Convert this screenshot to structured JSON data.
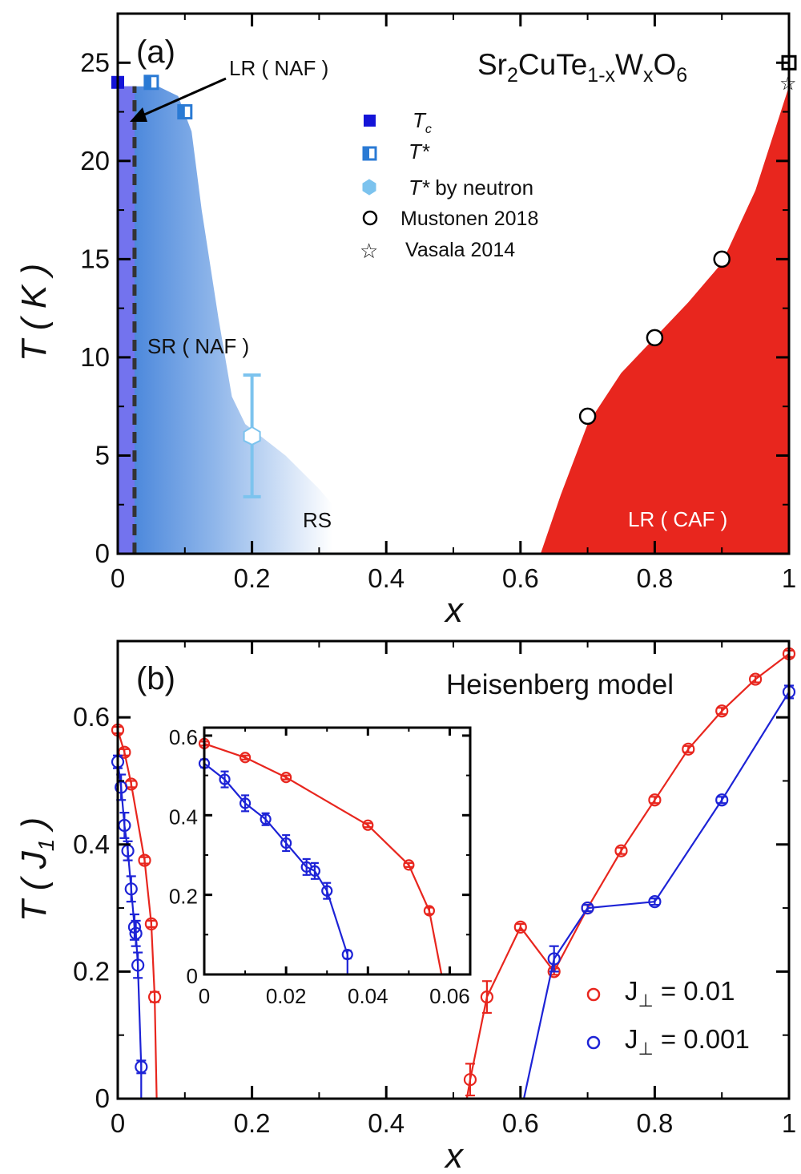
{
  "panel_a": {
    "panel_label": "(a)",
    "formula": {
      "base": "Sr",
      "s1": "2",
      "mid": "CuTe",
      "s2": "1-x",
      "w": "W",
      "s3": "x",
      "o": "O",
      "s4": "6"
    },
    "ylabel": "T ( K )",
    "xlabel": "x",
    "region_labels": {
      "lr_naf": "LR ( NAF )",
      "sr_naf": "SR ( NAF )",
      "rs": "RS",
      "lr_caf": "LR ( CAF )"
    },
    "legend": {
      "tc": "T",
      "tc_sub": "c",
      "tstar": "T*",
      "tneutron_italic": "T*",
      "tneutron_rest": " by neutron",
      "mustonen": "Mustonen 2018",
      "vasala": "Vasala 2014"
    }
  },
  "panel_b": {
    "panel_label": "(b)",
    "subtitle": "Heisenberg model",
    "ylabel": "T ( J",
    "ylabel_sub": "1",
    "ylabel_end": " )",
    "xlabel": "x",
    "legend": {
      "red_prefix": "J",
      "red_suffix": " = 0.01",
      "blue_prefix": "J",
      "blue_suffix": " = 0.001",
      "perp": "⊥"
    }
  },
  "colors": {
    "red": "#e8261e",
    "blue": "#1d23d6",
    "blue_sq": "#1414d8",
    "blue_mid": "#2a7ad4",
    "neutron": "#7cc3ee",
    "naf_strip": "#7373ee"
  },
  "chart_data": [
    {
      "id": "a",
      "type": "scatter",
      "xlim": [
        0,
        1
      ],
      "ylim": [
        0,
        27.5
      ],
      "xticks": [
        "0",
        "0.2",
        "0.4",
        "0.6",
        "0.8",
        "1"
      ],
      "yticks": [
        "0",
        "5",
        "10",
        "15",
        "20",
        "25"
      ],
      "series": [
        {
          "name": "Tc",
          "x": [
            0
          ],
          "y": [
            24
          ]
        },
        {
          "name": "T*",
          "x": [
            0.05,
            0.1
          ],
          "y": [
            24,
            22.5
          ]
        },
        {
          "name": "T* by neutron",
          "x": [
            0.2
          ],
          "y": [
            6
          ],
          "yerr_low": [
            2.9
          ],
          "yerr_high": [
            9.1
          ]
        },
        {
          "name": "Mustonen 2018",
          "x": [
            0.7,
            0.8,
            0.9,
            1.0
          ],
          "y": [
            7,
            11,
            15,
            25
          ]
        },
        {
          "name": "Vasala 2014",
          "x": [
            1.0
          ],
          "y": [
            24
          ]
        }
      ],
      "regions": [
        "LR ( NAF )",
        "SR ( NAF )",
        "RS",
        "LR ( CAF )"
      ],
      "lr_naf_boundary_x": 0.025,
      "sr_envelope": [
        [
          0,
          23.8
        ],
        [
          0.06,
          23.8
        ],
        [
          0.09,
          23.3
        ],
        [
          0.11,
          21.5
        ],
        [
          0.125,
          17.5
        ],
        [
          0.15,
          12
        ],
        [
          0.17,
          8
        ],
        [
          0.19,
          6.6
        ],
        [
          0.25,
          5.0
        ],
        [
          0.3,
          3.3
        ],
        [
          0.32,
          2.5
        ]
      ],
      "caf_envelope": [
        [
          0.63,
          0
        ],
        [
          0.66,
          3
        ],
        [
          0.7,
          6.6
        ],
        [
          0.75,
          9.2
        ],
        [
          0.8,
          11
        ],
        [
          0.85,
          12.8
        ],
        [
          0.9,
          14.8
        ],
        [
          0.95,
          18.5
        ],
        [
          1.0,
          23.8
        ]
      ]
    },
    {
      "id": "b",
      "type": "scatter",
      "xlim": [
        0,
        1
      ],
      "ylim": [
        0,
        0.72
      ],
      "xticks": [
        "0",
        "0.2",
        "0.4",
        "0.6",
        "0.8",
        "1"
      ],
      "yticks": [
        "0",
        "0.2",
        "0.4",
        "0.6"
      ],
      "series": [
        {
          "name": "J⊥ = 0.01",
          "x": [
            0,
            0.01,
            0.02,
            0.04,
            0.05,
            0.055,
            0.525,
            0.55,
            0.6,
            0.65,
            0.7,
            0.75,
            0.8,
            0.85,
            0.9,
            0.95,
            1.0
          ],
          "y": [
            0.58,
            0.545,
            0.495,
            0.375,
            0.275,
            0.16,
            0.03,
            0.16,
            0.27,
            0.2,
            0.3,
            0.39,
            0.47,
            0.55,
            0.61,
            0.66,
            0.7
          ],
          "err": [
            0.005,
            0.005,
            0.005,
            0.005,
            0.005,
            0.008,
            0.025,
            0.025,
            0.005,
            0.005,
            0.005,
            0.005,
            0.005,
            0.005,
            0.005,
            0.005,
            0.005
          ],
          "fit_left_end": 0.058,
          "fit_right_start": 0.52
        },
        {
          "name": "J⊥ = 0.001",
          "x": [
            0,
            0.005,
            0.01,
            0.015,
            0.02,
            0.025,
            0.027,
            0.03,
            0.035,
            0.65,
            0.7,
            0.8,
            0.9,
            1.0
          ],
          "y": [
            0.53,
            0.49,
            0.43,
            0.39,
            0.33,
            0.27,
            0.26,
            0.21,
            0.05,
            0.22,
            0.3,
            0.31,
            0.47,
            0.64
          ],
          "err": [
            0.01,
            0.02,
            0.02,
            0.015,
            0.02,
            0.02,
            0.02,
            0.02,
            0.01,
            0.02,
            0.005,
            0.005,
            0.005,
            0.01
          ],
          "fit_left_end": 0.035,
          "fit_right_start": 0.605
        }
      ],
      "inset": {
        "xlim": [
          0,
          0.065
        ],
        "ylim": [
          0,
          0.62
        ],
        "xticks": [
          "0",
          "0.02",
          "0.04",
          "0.06"
        ],
        "yticks": [
          "0",
          "0.2",
          "0.4",
          "0.6"
        ]
      }
    }
  ]
}
